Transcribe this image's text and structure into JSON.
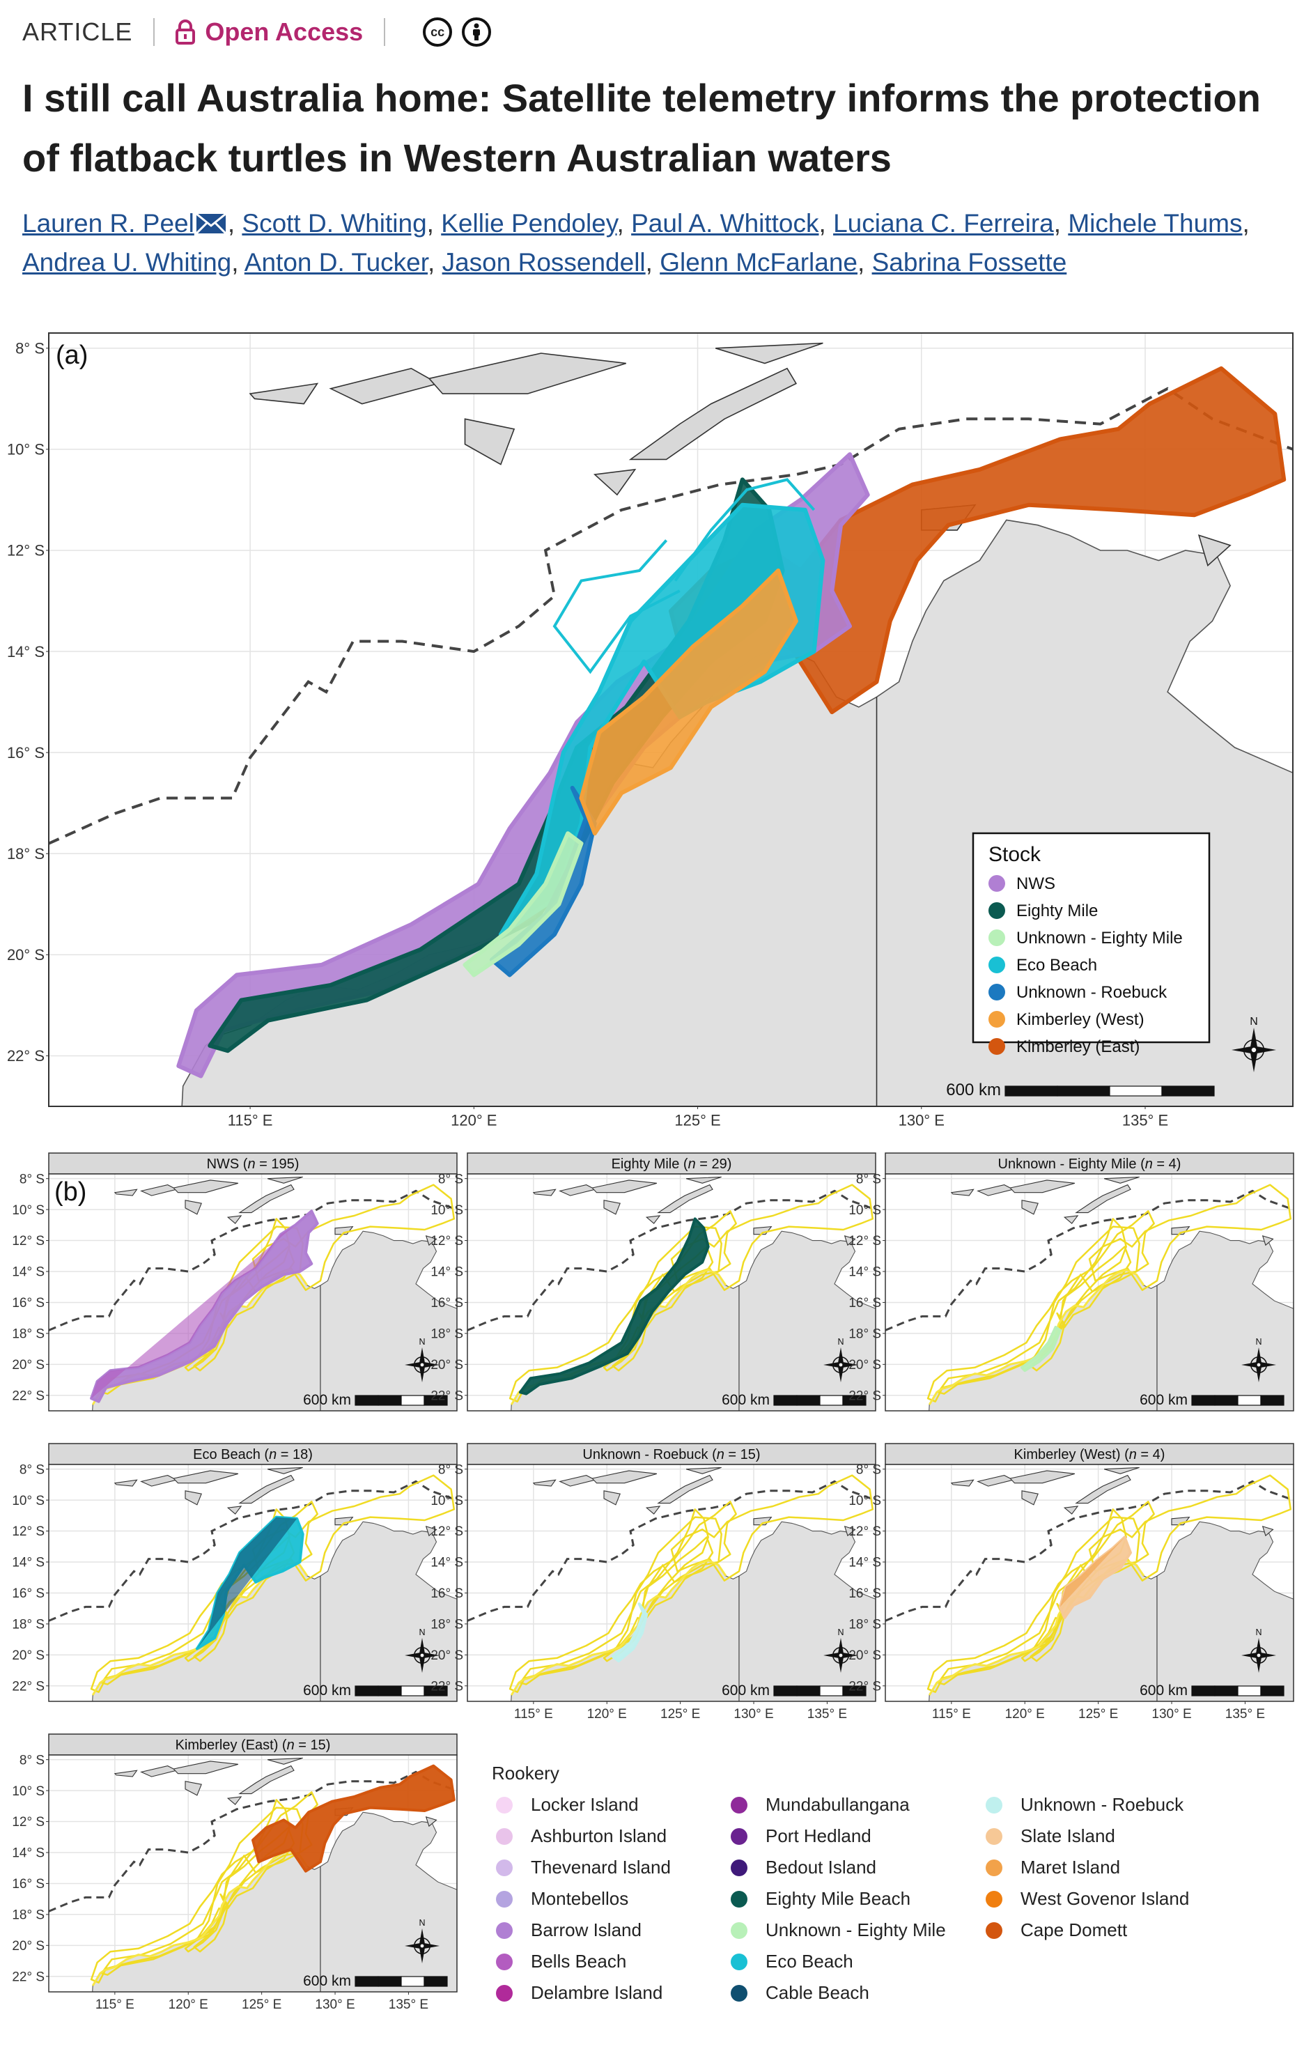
{
  "header": {
    "article_label": "ARTICLE",
    "open_access_label": "Open Access",
    "license_icons": [
      "cc-icon",
      "by-icon"
    ],
    "title": "I still call Australia home: Satellite telemetry informs the protection of flatback turtles in Western Australian waters",
    "authors": [
      "Lauren R. Peel",
      "Scott D. Whiting",
      "Kellie Pendoley",
      "Paul A. Whittock",
      "Luciana C. Ferreira",
      "Michele Thums",
      "Andrea U. Whiting",
      "Anton D. Tucker",
      "Jason Rossendell",
      "Glenn McFarlane",
      "Sabrina Fossette"
    ],
    "link_color": "#1f4f8f",
    "accent_color": "#b3266e"
  },
  "figure": {
    "panel_a": {
      "label": "(a)",
      "lat_ticks": [
        "8° S",
        "10° S",
        "12° S",
        "14° S",
        "16° S",
        "18° S",
        "20° S",
        "22° S"
      ],
      "lon_ticks": [
        "115° E",
        "120° E",
        "125° E",
        "130° E",
        "135° E"
      ],
      "scale_label": "600 km",
      "north_label": "N",
      "legend_title": "Stock",
      "legend": [
        {
          "label": "NWS",
          "color": "#b07fd3"
        },
        {
          "label": "Eighty Mile",
          "color": "#0b5a51"
        },
        {
          "label": "Unknown - Eighty Mile",
          "color": "#b8f0b8"
        },
        {
          "label": "Eco Beach",
          "color": "#19c0d4"
        },
        {
          "label": "Unknown - Roebuck",
          "color": "#1c79c0"
        },
        {
          "label": "Kimberley (West)",
          "color": "#f4a03a"
        },
        {
          "label": "Kimberley (East)",
          "color": "#d3560f"
        }
      ]
    },
    "panel_b": {
      "label": "(b)",
      "lat_ticks": [
        "8° S",
        "10° S",
        "12° S",
        "14° S",
        "16° S",
        "18° S",
        "20° S",
        "22° S"
      ],
      "lon_ticks": [
        "115° E",
        "120° E",
        "125° E",
        "130° E",
        "135° E"
      ],
      "scale_label": "600 km",
      "north_label": "N",
      "facets": [
        {
          "stock": "NWS",
          "n": "195",
          "color": "#b07fd3"
        },
        {
          "stock": "Eighty Mile",
          "n": "29",
          "color": "#0b5a51"
        },
        {
          "stock": "Unknown - Eighty Mile",
          "n": "4",
          "color": "#b8f0b8"
        },
        {
          "stock": "Eco Beach",
          "n": "18",
          "color": "#19c0d4"
        },
        {
          "stock": "Unknown - Roebuck",
          "n": "15",
          "color": "#bff0ee"
        },
        {
          "stock": "Kimberley (West)",
          "n": "4",
          "color": "#f2a24a"
        },
        {
          "stock": "Kimberley (East)",
          "n": "15",
          "color": "#d3560f"
        }
      ],
      "rookery_title": "Rookery",
      "rookeries": [
        {
          "label": "Locker Island",
          "color": "#f6d5f4"
        },
        {
          "label": "Ashburton Island",
          "color": "#e9c3ea"
        },
        {
          "label": "Thevenard Island",
          "color": "#d2b9ea"
        },
        {
          "label": "Montebellos",
          "color": "#b4a4e0"
        },
        {
          "label": "Barrow Island",
          "color": "#b07fd3"
        },
        {
          "label": "Bells Beach",
          "color": "#b35cc0"
        },
        {
          "label": "Delambre Island",
          "color": "#b02a9a"
        },
        {
          "label": "Mundabullangana",
          "color": "#8f2a9a"
        },
        {
          "label": "Port Hedland",
          "color": "#6a2390"
        },
        {
          "label": "Bedout Island",
          "color": "#3f1a7a"
        },
        {
          "label": "Eighty Mile Beach",
          "color": "#0b5a51"
        },
        {
          "label": "Unknown - Eighty Mile",
          "color": "#b8f0b8"
        },
        {
          "label": "Eco Beach",
          "color": "#19c0d4"
        },
        {
          "label": "Cable Beach",
          "color": "#0f4f70"
        },
        {
          "label": "Unknown - Roebuck",
          "color": "#bff0ee"
        },
        {
          "label": "Slate Island",
          "color": "#f6c896"
        },
        {
          "label": "Maret Island",
          "color": "#f2a24a"
        },
        {
          "label": "West Govenor Island",
          "color": "#f07f10"
        },
        {
          "label": "Cape Domett",
          "color": "#d3560f"
        }
      ]
    }
  }
}
